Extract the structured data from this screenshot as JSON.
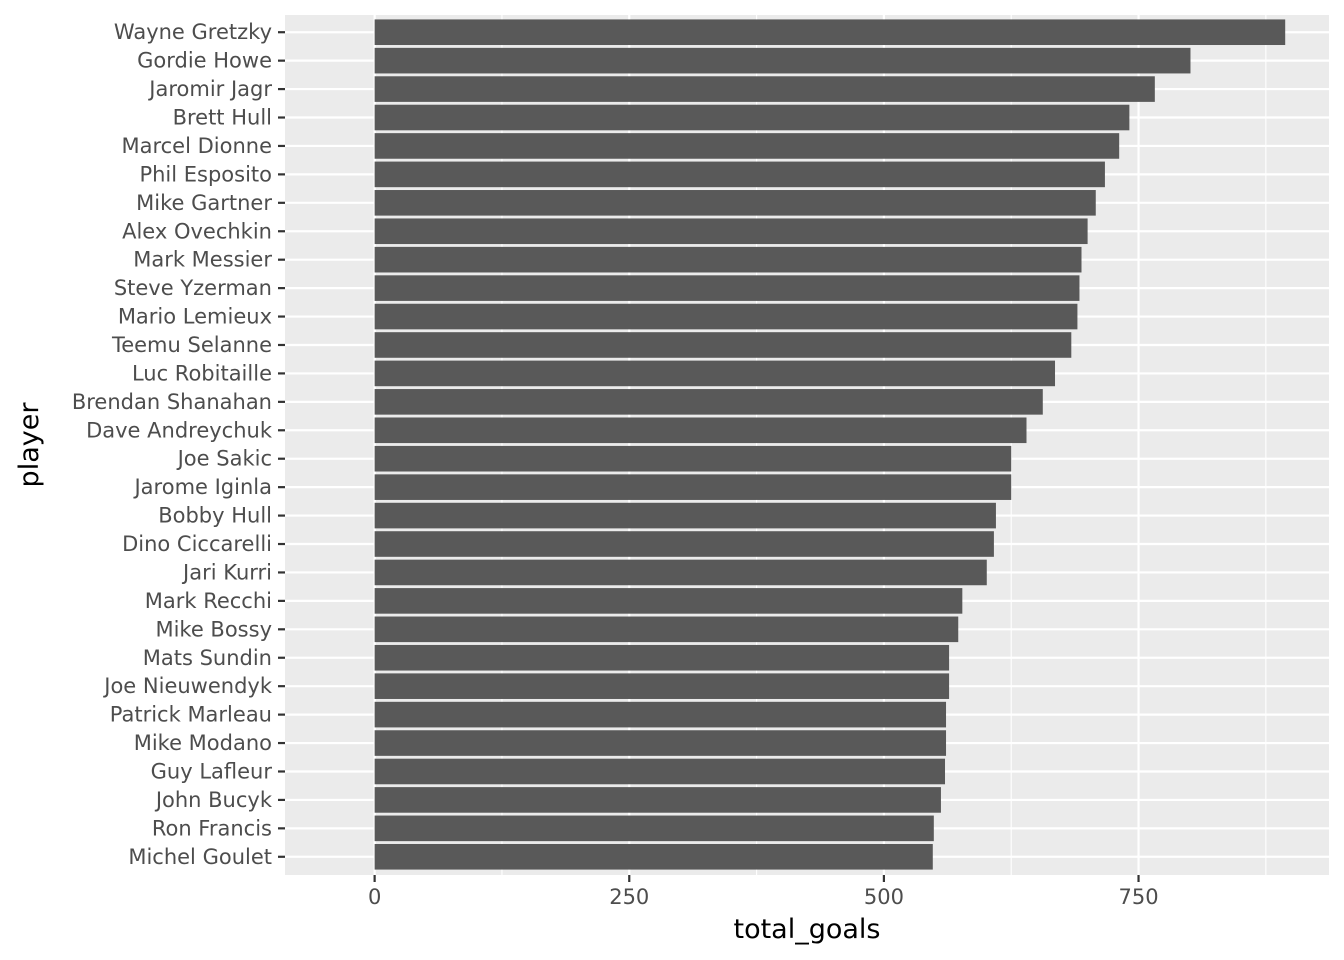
{
  "chart_data": {
    "type": "bar",
    "orientation": "horizontal",
    "xlabel": "total_goals",
    "ylabel": "player",
    "xlim": [
      -88,
      937
    ],
    "xticks": [
      0,
      250,
      500,
      750
    ],
    "grid": true,
    "bar_color": "#595959",
    "panel_color": "#ebebeb",
    "categories": [
      "Wayne Gretzky",
      "Gordie Howe",
      "Jaromir Jagr",
      "Brett Hull",
      "Marcel Dionne",
      "Phil Esposito",
      "Mike Gartner",
      "Alex Ovechkin",
      "Mark Messier",
      "Steve Yzerman",
      "Mario Lemieux",
      "Teemu Selanne",
      "Luc Robitaille",
      "Brendan Shanahan",
      "Dave Andreychuk",
      "Joe Sakic",
      "Jarome Iginla",
      "Bobby Hull",
      "Dino Ciccarelli",
      "Jari Kurri",
      "Mark Recchi",
      "Mike Bossy",
      "Mats Sundin",
      "Joe Nieuwendyk",
      "Patrick Marleau",
      "Mike Modano",
      "Guy Lafleur",
      "John Bucyk",
      "Ron Francis",
      "Michel Goulet"
    ],
    "values": [
      894,
      801,
      766,
      741,
      731,
      717,
      708,
      700,
      694,
      692,
      690,
      684,
      668,
      656,
      640,
      625,
      625,
      610,
      608,
      601,
      577,
      573,
      564,
      564,
      561,
      561,
      560,
      556,
      549,
      548
    ]
  }
}
